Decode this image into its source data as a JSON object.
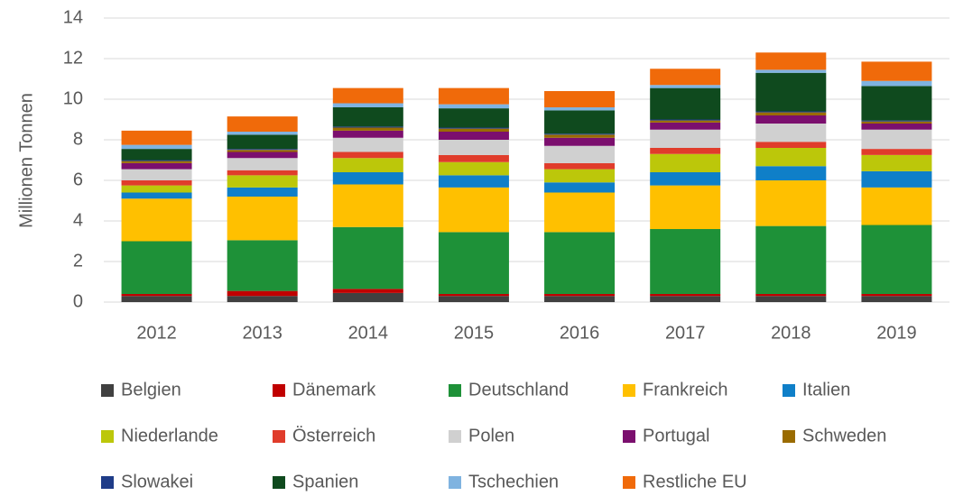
{
  "chart_data": {
    "type": "stacked_bar",
    "ylabel": "Millionen Tonnen",
    "categories": [
      "2012",
      "2013",
      "2014",
      "2015",
      "2016",
      "2017",
      "2018",
      "2019"
    ],
    "ylim": [
      0,
      14
    ],
    "yticks": [
      0,
      2,
      4,
      6,
      8,
      10,
      12,
      14
    ],
    "grid": true,
    "legend": "bottom",
    "series": [
      {
        "name": "Belgien",
        "color": "#404040",
        "values": [
          0.3,
          0.3,
          0.45,
          0.3,
          0.3,
          0.3,
          0.3,
          0.3
        ]
      },
      {
        "name": "Dänemark",
        "color": "#c00000",
        "values": [
          0.1,
          0.25,
          0.2,
          0.1,
          0.1,
          0.1,
          0.1,
          0.1
        ]
      },
      {
        "name": "Deutschland",
        "color": "#1e9138",
        "values": [
          2.6,
          2.5,
          3.05,
          3.05,
          3.05,
          3.2,
          3.35,
          3.4
        ]
      },
      {
        "name": "Frankreich",
        "color": "#ffc000",
        "values": [
          2.1,
          2.15,
          2.1,
          2.2,
          1.95,
          2.15,
          2.25,
          1.85
        ]
      },
      {
        "name": "Italien",
        "color": "#0f7fc8",
        "values": [
          0.3,
          0.45,
          0.6,
          0.6,
          0.5,
          0.65,
          0.7,
          0.8
        ]
      },
      {
        "name": "Niederlande",
        "color": "#bcc70a",
        "values": [
          0.35,
          0.6,
          0.7,
          0.65,
          0.65,
          0.9,
          0.9,
          0.8
        ]
      },
      {
        "name": "Österreich",
        "color": "#e03c2b",
        "values": [
          0.25,
          0.25,
          0.3,
          0.35,
          0.3,
          0.3,
          0.3,
          0.3
        ]
      },
      {
        "name": "Polen",
        "color": "#d0d0d0",
        "values": [
          0.55,
          0.6,
          0.7,
          0.75,
          0.85,
          0.9,
          0.9,
          0.95
        ]
      },
      {
        "name": "Portugal",
        "color": "#7b0f6e",
        "values": [
          0.3,
          0.3,
          0.35,
          0.4,
          0.4,
          0.35,
          0.4,
          0.3
        ]
      },
      {
        "name": "Schweden",
        "color": "#9a6b00",
        "values": [
          0.1,
          0.1,
          0.15,
          0.15,
          0.15,
          0.1,
          0.15,
          0.1
        ]
      },
      {
        "name": "Slowakei",
        "color": "#1f3c88",
        "values": [
          0.05,
          0.05,
          0.05,
          0.05,
          0.05,
          0.05,
          0.05,
          0.05
        ]
      },
      {
        "name": "Spanien",
        "color": "#0f4a1e",
        "values": [
          0.55,
          0.7,
          0.95,
          0.95,
          1.15,
          1.55,
          1.9,
          1.7
        ]
      },
      {
        "name": "Tschechien",
        "color": "#7fb3e0",
        "values": [
          0.2,
          0.15,
          0.2,
          0.2,
          0.15,
          0.15,
          0.15,
          0.25
        ]
      },
      {
        "name": "Restliche EU",
        "color": "#f06a0a",
        "values": [
          0.7,
          0.75,
          0.75,
          0.8,
          0.8,
          0.8,
          0.85,
          0.95
        ]
      }
    ]
  }
}
